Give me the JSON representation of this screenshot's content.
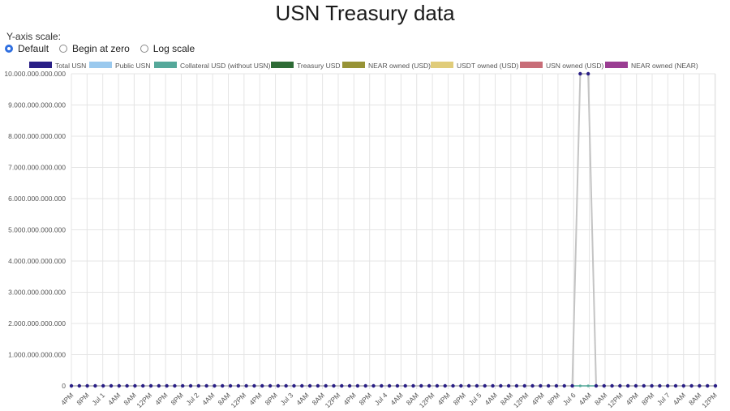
{
  "page": {
    "title": "USN Treasury data"
  },
  "y_scale": {
    "label": "Y-axis scale:",
    "options": [
      {
        "label": "Default",
        "selected": true
      },
      {
        "label": "Begin at zero",
        "selected": false
      },
      {
        "label": "Log scale",
        "selected": false
      }
    ]
  },
  "chart_data": {
    "type": "line",
    "title": "",
    "xlabel": "",
    "ylabel": "",
    "ylim": [
      0,
      10000000000000
    ],
    "grid": true,
    "legend_placement": "top",
    "y_ticks": [
      "0",
      "1.000.000.000.000",
      "2.000.000.000.000",
      "3.000.000.000.000",
      "4.000.000.000.000",
      "5.000.000.000.000",
      "6.000.000.000.000",
      "7.000.000.000.000",
      "8.000.000.000.000",
      "9.000.000.000.000",
      "10.000.000.000.000"
    ],
    "y_tick_values": [
      0,
      1000000000000,
      2000000000000,
      3000000000000,
      4000000000000,
      5000000000000,
      6000000000000,
      7000000000000,
      8000000000000,
      9000000000000,
      10000000000000
    ],
    "x_tick_labels": [
      "4PM",
      "8PM",
      "Jul 1",
      "4AM",
      "8AM",
      "12PM",
      "4PM",
      "8PM",
      "Jul 2",
      "4AM",
      "8AM",
      "12PM",
      "4PM",
      "8PM",
      "Jul 3",
      "4AM",
      "8AM",
      "12PM",
      "4PM",
      "8PM",
      "Jul 4",
      "4AM",
      "8AM",
      "12PM",
      "4PM",
      "8PM",
      "Jul 5",
      "4AM",
      "8AM",
      "12PM",
      "4PM",
      "8PM",
      "Jul 6",
      "4AM",
      "8AM",
      "12PM",
      "4PM",
      "8PM",
      "Jul 7",
      "4AM",
      "8AM",
      "12PM"
    ],
    "series": [
      {
        "name": "Total USN",
        "color": "#2a1f86",
        "values": [
          0,
          0,
          0,
          0,
          0,
          0,
          0,
          0,
          0,
          0,
          0,
          0,
          0,
          0,
          0,
          0,
          0,
          0,
          0,
          0,
          0,
          0,
          0,
          0,
          0,
          0,
          0,
          0,
          0,
          0,
          0,
          0,
          0,
          0,
          0,
          0,
          0,
          0,
          0,
          0,
          0,
          0,
          0,
          0,
          0,
          0,
          0,
          0,
          0,
          0,
          0,
          0,
          0,
          0,
          0,
          0,
          0,
          0,
          0,
          0,
          0,
          0,
          0,
          0,
          10000000000000,
          10000000000000,
          0,
          0,
          0,
          0,
          0,
          0,
          0,
          0,
          0,
          0,
          0,
          0,
          0,
          0,
          0,
          0
        ]
      },
      {
        "name": "Public USN",
        "color": "#9ac9ee",
        "values": []
      },
      {
        "name": "Collateral USD (without USN)",
        "color": "#55a89a",
        "values": [
          0,
          0,
          0,
          0,
          0,
          0,
          0,
          0,
          0,
          0,
          0,
          0,
          0,
          0,
          0,
          0,
          0,
          0,
          0,
          0,
          0,
          0,
          0,
          0,
          0,
          0,
          0,
          0,
          0,
          0,
          0,
          0,
          0,
          0,
          0,
          0,
          0,
          0,
          0,
          0,
          0,
          0,
          0,
          0,
          0,
          0,
          0,
          0,
          0,
          0,
          0,
          0,
          0,
          0,
          0,
          0,
          0,
          0,
          0,
          0,
          0,
          0,
          0,
          0,
          0,
          0,
          0,
          0,
          0,
          0,
          0,
          0,
          0,
          0,
          0,
          0,
          0,
          0,
          0,
          0,
          0,
          0
        ]
      },
      {
        "name": "Treasury USD",
        "color": "#2e6b36",
        "values": []
      },
      {
        "name": "NEAR owned (USD)",
        "color": "#979336",
        "values": []
      },
      {
        "name": "USDT owned (USD)",
        "color": "#e0cc7a",
        "values": []
      },
      {
        "name": "USN owned (USD)",
        "color": "#c86d78",
        "values": []
      },
      {
        "name": "NEAR owned (NEAR)",
        "color": "#9a3d92",
        "values": []
      }
    ]
  }
}
